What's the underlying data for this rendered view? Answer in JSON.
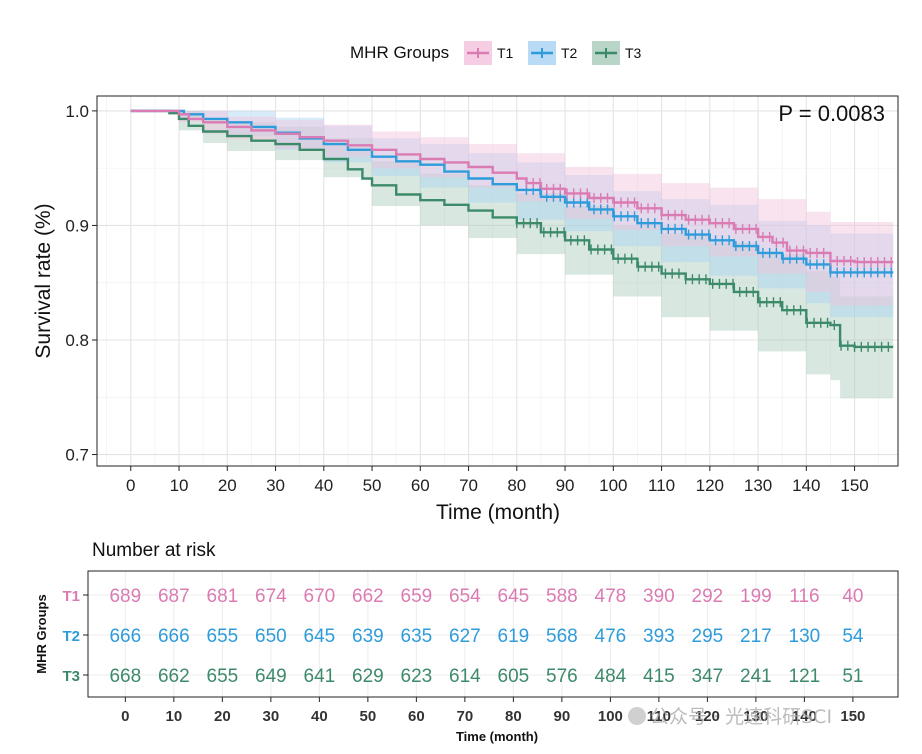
{
  "chart_data": [
    {
      "type": "line",
      "subtype": "kaplan-meier",
      "legend_title": "MHR Groups",
      "legend_position": "top",
      "xlabel": "Time (month)",
      "ylabel": "Survival rate (%)",
      "xlim": [
        -7,
        159
      ],
      "ylim": [
        0.69,
        1.013
      ],
      "xticks": [
        0,
        10,
        20,
        30,
        40,
        50,
        60,
        70,
        80,
        90,
        100,
        110,
        120,
        130,
        140,
        150
      ],
      "yticks": [
        0.7,
        0.8,
        0.9,
        1.0
      ],
      "ytick_labels": [
        "0.7",
        "0.8",
        "0.9",
        "1.0"
      ],
      "annotation": "P = 0.0083",
      "grid": true,
      "series": [
        {
          "name": "T1",
          "color": "#DB7BB3",
          "band_color": "#F2C2DC",
          "points": [
            [
              0,
              1.0
            ],
            [
              5,
              1.0
            ],
            [
              10,
              0.997
            ],
            [
              12,
              0.993
            ],
            [
              15,
              0.99
            ],
            [
              20,
              0.986
            ],
            [
              25,
              0.983
            ],
            [
              30,
              0.98
            ],
            [
              35,
              0.977
            ],
            [
              40,
              0.974
            ],
            [
              45,
              0.97
            ],
            [
              50,
              0.966
            ],
            [
              55,
              0.962
            ],
            [
              60,
              0.958
            ],
            [
              65,
              0.955
            ],
            [
              70,
              0.951
            ],
            [
              75,
              0.946
            ],
            [
              80,
              0.941
            ],
            [
              82,
              0.937
            ],
            [
              85,
              0.932
            ],
            [
              90,
              0.928
            ],
            [
              95,
              0.924
            ],
            [
              100,
              0.92
            ],
            [
              105,
              0.915
            ],
            [
              110,
              0.909
            ],
            [
              115,
              0.905
            ],
            [
              120,
              0.902
            ],
            [
              125,
              0.897
            ],
            [
              130,
              0.89
            ],
            [
              133,
              0.885
            ],
            [
              136,
              0.878
            ],
            [
              140,
              0.876
            ],
            [
              145,
              0.869
            ],
            [
              150,
              0.868
            ],
            [
              158,
              0.868
            ]
          ],
          "lower": [
            [
              0,
              1.0
            ],
            [
              5,
              1.0
            ],
            [
              10,
              0.99
            ],
            [
              15,
              0.98
            ],
            [
              20,
              0.975
            ],
            [
              30,
              0.967
            ],
            [
              40,
              0.96
            ],
            [
              50,
              0.95
            ],
            [
              60,
              0.942
            ],
            [
              70,
              0.933
            ],
            [
              80,
              0.921
            ],
            [
              90,
              0.906
            ],
            [
              100,
              0.896
            ],
            [
              110,
              0.882
            ],
            [
              120,
              0.873
            ],
            [
              130,
              0.858
            ],
            [
              140,
              0.842
            ],
            [
              145,
              0.83
            ],
            [
              150,
              0.83
            ],
            [
              158,
              0.83
            ]
          ],
          "upper": [
            [
              0,
              1.0
            ],
            [
              5,
              1.0
            ],
            [
              10,
              1.0
            ],
            [
              20,
              0.995
            ],
            [
              30,
              0.992
            ],
            [
              40,
              0.988
            ],
            [
              50,
              0.982
            ],
            [
              60,
              0.977
            ],
            [
              70,
              0.971
            ],
            [
              80,
              0.963
            ],
            [
              90,
              0.951
            ],
            [
              100,
              0.945
            ],
            [
              110,
              0.937
            ],
            [
              120,
              0.933
            ],
            [
              130,
              0.923
            ],
            [
              140,
              0.912
            ],
            [
              145,
              0.903
            ],
            [
              150,
              0.903
            ],
            [
              158,
              0.903
            ]
          ]
        },
        {
          "name": "T2",
          "color": "#2E9CDB",
          "band_color": "#A9D2F2",
          "points": [
            [
              0,
              1.0
            ],
            [
              5,
              1.0
            ],
            [
              10,
              1.0
            ],
            [
              11,
              0.997
            ],
            [
              15,
              0.993
            ],
            [
              20,
              0.99
            ],
            [
              25,
              0.986
            ],
            [
              30,
              0.981
            ],
            [
              35,
              0.976
            ],
            [
              40,
              0.971
            ],
            [
              45,
              0.966
            ],
            [
              50,
              0.96
            ],
            [
              55,
              0.956
            ],
            [
              60,
              0.953
            ],
            [
              65,
              0.947
            ],
            [
              70,
              0.941
            ],
            [
              75,
              0.936
            ],
            [
              80,
              0.931
            ],
            [
              85,
              0.925
            ],
            [
              90,
              0.92
            ],
            [
              95,
              0.914
            ],
            [
              100,
              0.908
            ],
            [
              105,
              0.902
            ],
            [
              110,
              0.897
            ],
            [
              115,
              0.892
            ],
            [
              120,
              0.887
            ],
            [
              125,
              0.882
            ],
            [
              130,
              0.876
            ],
            [
              135,
              0.871
            ],
            [
              140,
              0.866
            ],
            [
              145,
              0.859
            ],
            [
              150,
              0.859
            ],
            [
              158,
              0.859
            ]
          ],
          "lower": [
            [
              0,
              1.0
            ],
            [
              5,
              1.0
            ],
            [
              10,
              0.993
            ],
            [
              20,
              0.978
            ],
            [
              30,
              0.966
            ],
            [
              40,
              0.955
            ],
            [
              50,
              0.943
            ],
            [
              60,
              0.933
            ],
            [
              70,
              0.92
            ],
            [
              80,
              0.905
            ],
            [
              90,
              0.895
            ],
            [
              100,
              0.882
            ],
            [
              110,
              0.868
            ],
            [
              120,
              0.856
            ],
            [
              130,
              0.845
            ],
            [
              140,
              0.832
            ],
            [
              145,
              0.82
            ],
            [
              150,
              0.82
            ],
            [
              158,
              0.82
            ]
          ],
          "upper": [
            [
              0,
              1.0
            ],
            [
              5,
              1.0
            ],
            [
              10,
              1.0
            ],
            [
              20,
              1.0
            ],
            [
              30,
              0.994
            ],
            [
              40,
              0.987
            ],
            [
              50,
              0.976
            ],
            [
              60,
              0.971
            ],
            [
              70,
              0.963
            ],
            [
              80,
              0.955
            ],
            [
              90,
              0.944
            ],
            [
              100,
              0.93
            ],
            [
              110,
              0.923
            ],
            [
              120,
              0.918
            ],
            [
              130,
              0.904
            ],
            [
              140,
              0.9
            ],
            [
              145,
              0.893
            ],
            [
              150,
              0.893
            ],
            [
              158,
              0.893
            ]
          ]
        },
        {
          "name": "T3",
          "color": "#3D8A6A",
          "band_color": "#A8CBBA",
          "points": [
            [
              0,
              1.0
            ],
            [
              5,
              1.0
            ],
            [
              8,
              0.998
            ],
            [
              10,
              0.993
            ],
            [
              12,
              0.987
            ],
            [
              15,
              0.982
            ],
            [
              20,
              0.978
            ],
            [
              25,
              0.974
            ],
            [
              30,
              0.971
            ],
            [
              35,
              0.966
            ],
            [
              40,
              0.958
            ],
            [
              45,
              0.949
            ],
            [
              48,
              0.941
            ],
            [
              50,
              0.935
            ],
            [
              55,
              0.927
            ],
            [
              60,
              0.922
            ],
            [
              65,
              0.918
            ],
            [
              70,
              0.913
            ],
            [
              75,
              0.907
            ],
            [
              80,
              0.902
            ],
            [
              85,
              0.894
            ],
            [
              90,
              0.887
            ],
            [
              95,
              0.879
            ],
            [
              100,
              0.871
            ],
            [
              105,
              0.864
            ],
            [
              110,
              0.858
            ],
            [
              115,
              0.853
            ],
            [
              120,
              0.849
            ],
            [
              125,
              0.842
            ],
            [
              130,
              0.833
            ],
            [
              135,
              0.826
            ],
            [
              140,
              0.815
            ],
            [
              145,
              0.813
            ],
            [
              147,
              0.795
            ],
            [
              150,
              0.794
            ],
            [
              158,
              0.794
            ]
          ],
          "lower": [
            [
              0,
              1.0
            ],
            [
              5,
              1.0
            ],
            [
              10,
              0.983
            ],
            [
              15,
              0.972
            ],
            [
              20,
              0.965
            ],
            [
              30,
              0.957
            ],
            [
              40,
              0.942
            ],
            [
              50,
              0.917
            ],
            [
              60,
              0.9
            ],
            [
              70,
              0.889
            ],
            [
              80,
              0.875
            ],
            [
              90,
              0.857
            ],
            [
              100,
              0.838
            ],
            [
              110,
              0.82
            ],
            [
              120,
              0.808
            ],
            [
              130,
              0.79
            ],
            [
              140,
              0.77
            ],
            [
              145,
              0.765
            ],
            [
              147,
              0.749
            ],
            [
              150,
              0.749
            ],
            [
              158,
              0.749
            ]
          ],
          "upper": [
            [
              0,
              1.0
            ],
            [
              5,
              1.0
            ],
            [
              10,
              1.0
            ],
            [
              15,
              0.993
            ],
            [
              20,
              0.99
            ],
            [
              30,
              0.986
            ],
            [
              40,
              0.976
            ],
            [
              50,
              0.956
            ],
            [
              60,
              0.945
            ],
            [
              70,
              0.935
            ],
            [
              80,
              0.928
            ],
            [
              90,
              0.917
            ],
            [
              100,
              0.9
            ],
            [
              110,
              0.893
            ],
            [
              120,
              0.885
            ],
            [
              130,
              0.875
            ],
            [
              140,
              0.86
            ],
            [
              145,
              0.855
            ],
            [
              147,
              0.838
            ],
            [
              150,
              0.838
            ],
            [
              158,
              0.838
            ]
          ]
        }
      ]
    },
    {
      "type": "table",
      "title": "Number at risk",
      "ylabel": "MHR Groups",
      "xlabel": "Time (month)",
      "times": [
        0,
        10,
        20,
        30,
        40,
        50,
        60,
        70,
        80,
        90,
        100,
        110,
        120,
        130,
        140,
        150
      ],
      "rows": [
        {
          "name": "T1",
          "color": "#DB7BB3",
          "values": [
            689,
            687,
            681,
            674,
            670,
            662,
            659,
            654,
            645,
            588,
            478,
            390,
            292,
            199,
            116,
            40
          ]
        },
        {
          "name": "T2",
          "color": "#2E9CDB",
          "values": [
            666,
            666,
            655,
            650,
            645,
            639,
            635,
            627,
            619,
            568,
            476,
            393,
            295,
            217,
            130,
            54
          ]
        },
        {
          "name": "T3",
          "color": "#3D8A6A",
          "values": [
            668,
            662,
            655,
            649,
            641,
            629,
            623,
            614,
            605,
            576,
            484,
            415,
            347,
            241,
            121,
            51
          ]
        }
      ]
    }
  ],
  "watermark": "公众号 · 光速科研SCI"
}
